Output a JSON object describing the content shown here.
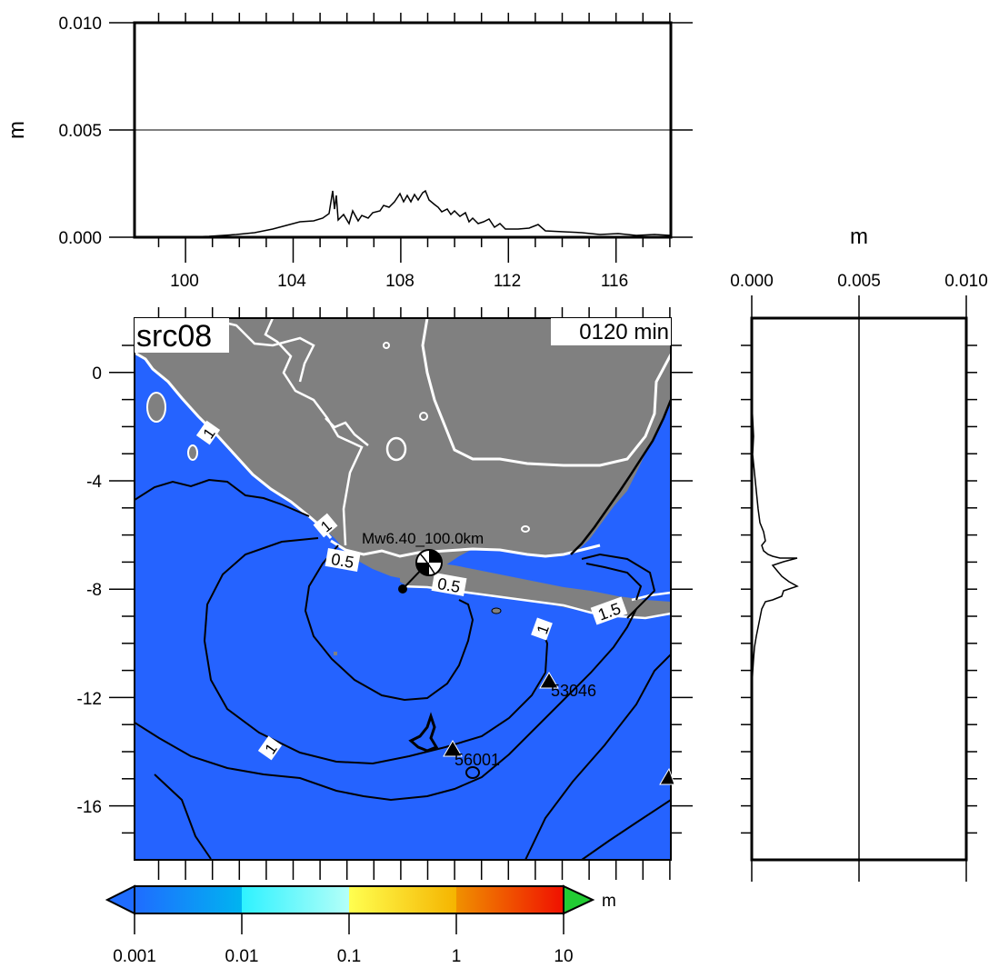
{
  "units_label": "m",
  "top_panel": {
    "ylabel": "m",
    "yticks": [
      "0.000",
      "0.005",
      "0.010"
    ],
    "xticks": [
      "100",
      "104",
      "108",
      "112",
      "116"
    ]
  },
  "right_panel": {
    "xlabel": "m",
    "xticks": [
      "0.000",
      "0.005",
      "0.010"
    ]
  },
  "map": {
    "source_label": "src08",
    "time_label": "0120 min",
    "yticks": [
      "0",
      "-4",
      "-8",
      "-12",
      "-16"
    ],
    "event_label": "Mw6.40_100.0km",
    "stations": [
      {
        "id": "53046"
      },
      {
        "id": "56001"
      }
    ],
    "contour_labels": [
      {
        "text": "1"
      },
      {
        "text": "1"
      },
      {
        "text": "0.5"
      },
      {
        "text": "0.5"
      },
      {
        "text": "1"
      },
      {
        "text": "1.5"
      },
      {
        "text": "1"
      }
    ],
    "colors": {
      "ocean": "#2563ff",
      "land": "#808080",
      "coast": "#ffffff",
      "contour": "#000000"
    }
  },
  "colorbar": {
    "unit": "m",
    "ticks": [
      "0.001",
      "0.01",
      "0.1",
      "1",
      "10"
    ],
    "segments": [
      {
        "from": "#1f6cff",
        "to": "#00b4f0"
      },
      {
        "from": "#2ef2ff",
        "to": "#b4fff8"
      },
      {
        "from": "#ffff50",
        "to": "#f5b400"
      },
      {
        "from": "#f09000",
        "to": "#f01000"
      }
    ],
    "below_color": "#1f6cff",
    "above_color": "#22cc33"
  }
}
